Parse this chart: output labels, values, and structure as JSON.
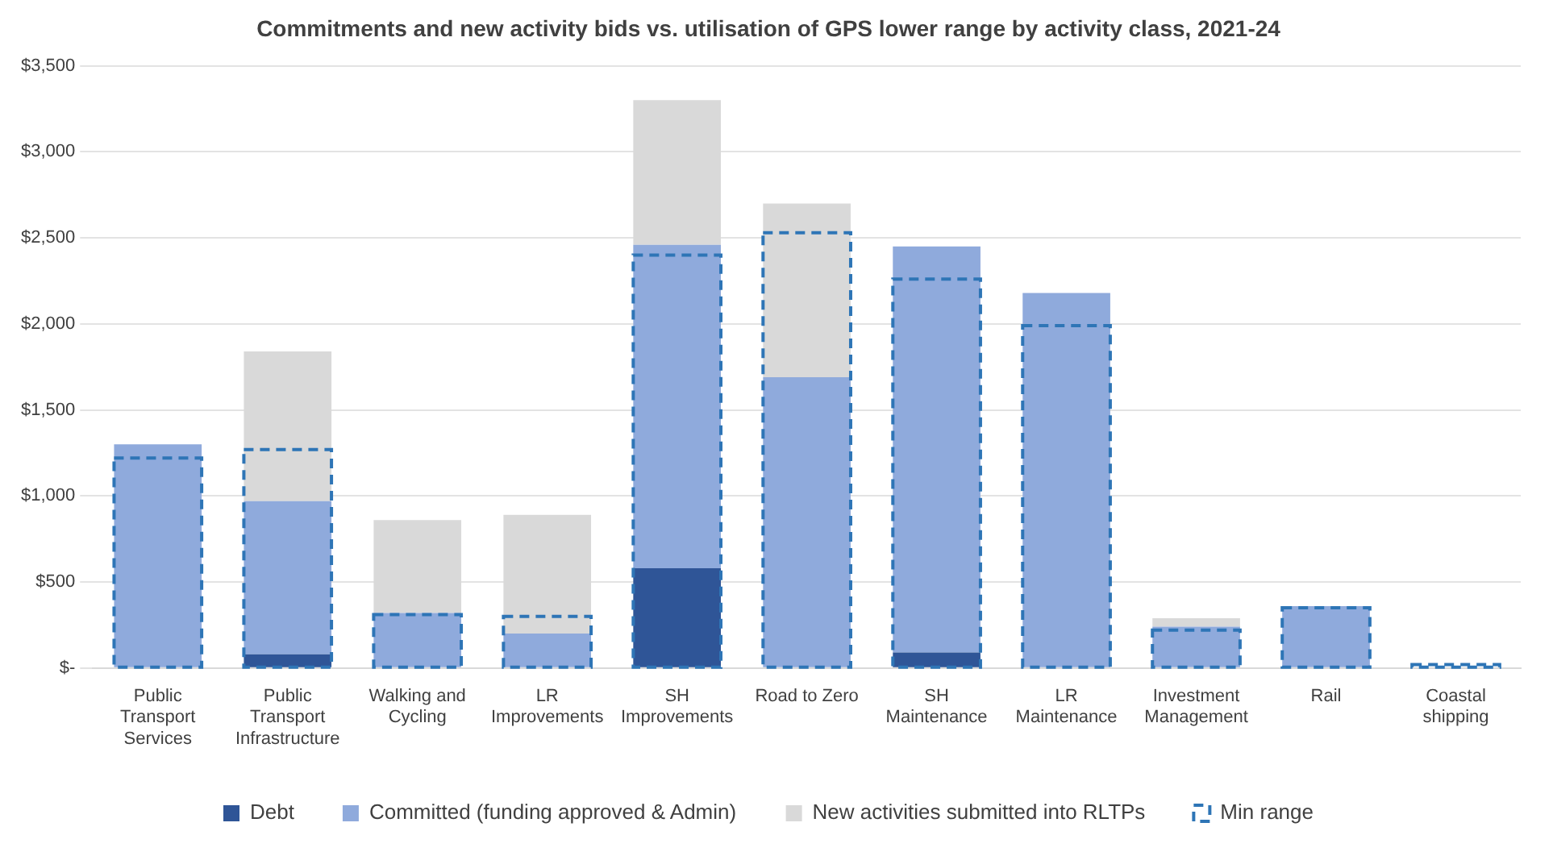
{
  "chart_data": {
    "type": "bar",
    "title": "Commitments and new activity bids vs. utilisation of GPS lower range by activity class, 2021-24",
    "categories": [
      "Public Transport Services",
      "Public Transport Infrastructure",
      "Walking and Cycling",
      "LR Improvements",
      "SH Improvements",
      "Road to Zero",
      "SH Maintenance",
      "LR Maintenance",
      "Investment Management",
      "Rail",
      "Coastal shipping"
    ],
    "series": [
      {
        "name": "Debt",
        "color": "#2f5597",
        "values": [
          null,
          80,
          null,
          null,
          580,
          null,
          90,
          null,
          null,
          null,
          null
        ]
      },
      {
        "name": "Committed (funding approved & Admin)",
        "color": "#8faadc",
        "values": [
          1300,
          890,
          320,
          200,
          1880,
          1690,
          2360,
          2180,
          240,
          360,
          null
        ],
        "base": [
          0,
          80,
          0,
          0,
          580,
          0,
          90,
          0,
          0,
          0,
          null
        ]
      },
      {
        "name": "New activities submitted into RLTPs",
        "color": "#d9d9d9",
        "values": [
          null,
          870,
          540,
          690,
          840,
          1010,
          null,
          null,
          50,
          null,
          null
        ],
        "base": [
          null,
          970,
          320,
          200,
          2460,
          1690,
          null,
          null,
          240,
          null,
          null
        ]
      },
      {
        "name": "Min range",
        "type": "bar",
        "color": "#2e75b6",
        "line_style": "dashed",
        "values": [
          1220,
          1270,
          310,
          300,
          2400,
          2530,
          2260,
          1990,
          220,
          350,
          20
        ]
      }
    ],
    "ylim": [
      0,
      3500
    ],
    "yticks": [
      {
        "value": 0,
        "label": "$-"
      },
      {
        "value": 500,
        "label": "$500"
      },
      {
        "value": 1000,
        "label": "$1,000"
      },
      {
        "value": 1500,
        "label": "$1,500"
      },
      {
        "value": 2000,
        "label": "$2,000"
      },
      {
        "value": 2500,
        "label": "$2,500"
      },
      {
        "value": 3000,
        "label": "$3,000"
      },
      {
        "value": 3500,
        "label": "$3,500"
      }
    ],
    "grid": "y",
    "legend": "bottom"
  }
}
